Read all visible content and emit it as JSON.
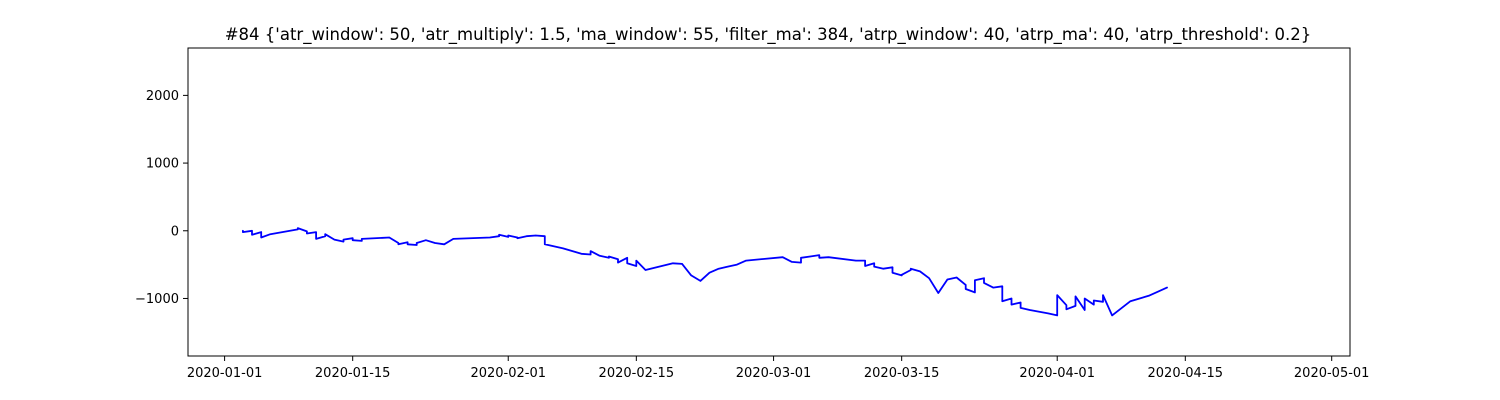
{
  "chart_data": {
    "type": "line",
    "title": "#84 {'atr_window': 50, 'atr_multiply': 1.5, 'ma_window': 55, 'filter_ma': 384, 'atrp_window': 40, 'atrp_ma': 40, 'atrp_threshold': 0.2}",
    "xlabel": "",
    "ylabel": "",
    "xlim": [
      "2019-12-28",
      "2020-05-03"
    ],
    "ylim": [
      -1850,
      2700
    ],
    "x_ticks": [
      "2020-01-01",
      "2020-01-15",
      "2020-02-01",
      "2020-02-15",
      "2020-03-01",
      "2020-03-15",
      "2020-04-01",
      "2020-04-15",
      "2020-05-01"
    ],
    "y_ticks": [
      -1000,
      0,
      1000,
      2000
    ],
    "grid": false,
    "legend": "none",
    "line_color": "#0000ff",
    "series": [
      {
        "points": [
          [
            "2020-01-03",
            0
          ],
          [
            "2020-01-03",
            -20
          ],
          [
            "2020-01-04",
            0
          ],
          [
            "2020-01-04",
            -60
          ],
          [
            "2020-01-05",
            -20
          ],
          [
            "2020-01-05",
            -100
          ],
          [
            "2020-01-06",
            -50
          ],
          [
            "2020-01-09",
            20
          ],
          [
            "2020-01-09",
            40
          ],
          [
            "2020-01-10",
            -10
          ],
          [
            "2020-01-10",
            -40
          ],
          [
            "2020-01-11",
            -20
          ],
          [
            "2020-01-11",
            -120
          ],
          [
            "2020-01-12",
            -80
          ],
          [
            "2020-01-12",
            -50
          ],
          [
            "2020-01-13",
            -130
          ],
          [
            "2020-01-14",
            -160
          ],
          [
            "2020-01-14",
            -130
          ],
          [
            "2020-01-15",
            -110
          ],
          [
            "2020-01-15",
            -140
          ],
          [
            "2020-01-16",
            -150
          ],
          [
            "2020-01-16",
            -120
          ],
          [
            "2020-01-19",
            -100
          ],
          [
            "2020-01-20",
            -180
          ],
          [
            "2020-01-20",
            -200
          ],
          [
            "2020-01-21",
            -170
          ],
          [
            "2020-01-21",
            -200
          ],
          [
            "2020-01-22",
            -210
          ],
          [
            "2020-01-22",
            -180
          ],
          [
            "2020-01-23",
            -140
          ],
          [
            "2020-01-24",
            -180
          ],
          [
            "2020-01-25",
            -200
          ],
          [
            "2020-01-26",
            -120
          ],
          [
            "2020-01-30",
            -100
          ],
          [
            "2020-01-31",
            -80
          ],
          [
            "2020-01-31",
            -60
          ],
          [
            "2020-02-01",
            -90
          ],
          [
            "2020-02-01",
            -70
          ],
          [
            "2020-02-02",
            -100
          ],
          [
            "2020-02-02",
            -110
          ],
          [
            "2020-02-03",
            -80
          ],
          [
            "2020-02-04",
            -70
          ],
          [
            "2020-02-05",
            -80
          ],
          [
            "2020-02-05",
            -200
          ],
          [
            "2020-02-07",
            -260
          ],
          [
            "2020-02-09",
            -340
          ],
          [
            "2020-02-10",
            -350
          ],
          [
            "2020-02-10",
            -300
          ],
          [
            "2020-02-11",
            -370
          ],
          [
            "2020-02-12",
            -400
          ],
          [
            "2020-02-12",
            -380
          ],
          [
            "2020-02-13",
            -420
          ],
          [
            "2020-02-13",
            -470
          ],
          [
            "2020-02-14",
            -400
          ],
          [
            "2020-02-14",
            -480
          ],
          [
            "2020-02-15",
            -520
          ],
          [
            "2020-02-15",
            -440
          ],
          [
            "2020-02-16",
            -580
          ],
          [
            "2020-02-19",
            -480
          ],
          [
            "2020-02-20",
            -490
          ],
          [
            "2020-02-21",
            -660
          ],
          [
            "2020-02-22",
            -740
          ],
          [
            "2020-02-23",
            -620
          ],
          [
            "2020-02-24",
            -560
          ],
          [
            "2020-02-25",
            -530
          ],
          [
            "2020-02-26",
            -500
          ],
          [
            "2020-02-27",
            -440
          ],
          [
            "2020-03-02",
            -390
          ],
          [
            "2020-03-03",
            -460
          ],
          [
            "2020-03-04",
            -470
          ],
          [
            "2020-03-04",
            -400
          ],
          [
            "2020-03-05",
            -380
          ],
          [
            "2020-03-06",
            -360
          ],
          [
            "2020-03-06",
            -400
          ],
          [
            "2020-03-07",
            -390
          ],
          [
            "2020-03-10",
            -440
          ],
          [
            "2020-03-11",
            -440
          ],
          [
            "2020-03-11",
            -520
          ],
          [
            "2020-03-12",
            -480
          ],
          [
            "2020-03-12",
            -530
          ],
          [
            "2020-03-13",
            -560
          ],
          [
            "2020-03-14",
            -540
          ],
          [
            "2020-03-14",
            -620
          ],
          [
            "2020-03-15",
            -660
          ],
          [
            "2020-03-15",
            -650
          ],
          [
            "2020-03-16",
            -580
          ],
          [
            "2020-03-16",
            -560
          ],
          [
            "2020-03-17",
            -600
          ],
          [
            "2020-03-18",
            -700
          ],
          [
            "2020-03-19",
            -920
          ],
          [
            "2020-03-20",
            -720
          ],
          [
            "2020-03-21",
            -690
          ],
          [
            "2020-03-22",
            -800
          ],
          [
            "2020-03-22",
            -860
          ],
          [
            "2020-03-23",
            -910
          ],
          [
            "2020-03-23",
            -730
          ],
          [
            "2020-03-24",
            -700
          ],
          [
            "2020-03-24",
            -770
          ],
          [
            "2020-03-25",
            -840
          ],
          [
            "2020-03-26",
            -820
          ],
          [
            "2020-03-26",
            -1040
          ],
          [
            "2020-03-27",
            -1000
          ],
          [
            "2020-03-27",
            -1090
          ],
          [
            "2020-03-28",
            -1060
          ],
          [
            "2020-03-28",
            -1140
          ],
          [
            "2020-03-29",
            -1170
          ],
          [
            "2020-03-31",
            -1220
          ],
          [
            "2020-04-01",
            -1250
          ],
          [
            "2020-04-01",
            -950
          ],
          [
            "2020-04-02",
            -1100
          ],
          [
            "2020-04-02",
            -1160
          ],
          [
            "2020-04-03",
            -1110
          ],
          [
            "2020-04-03",
            -970
          ],
          [
            "2020-04-04",
            -1170
          ],
          [
            "2020-04-04",
            -1000
          ],
          [
            "2020-04-05",
            -1090
          ],
          [
            "2020-04-05",
            -1030
          ],
          [
            "2020-04-06",
            -1050
          ],
          [
            "2020-04-06",
            -950
          ],
          [
            "2020-04-07",
            -1250
          ],
          [
            "2020-04-09",
            -1040
          ],
          [
            "2020-04-10",
            -1000
          ],
          [
            "2020-04-11",
            -960
          ],
          [
            "2020-04-12",
            -900
          ],
          [
            "2020-04-13",
            -840
          ]
        ]
      }
    ]
  }
}
